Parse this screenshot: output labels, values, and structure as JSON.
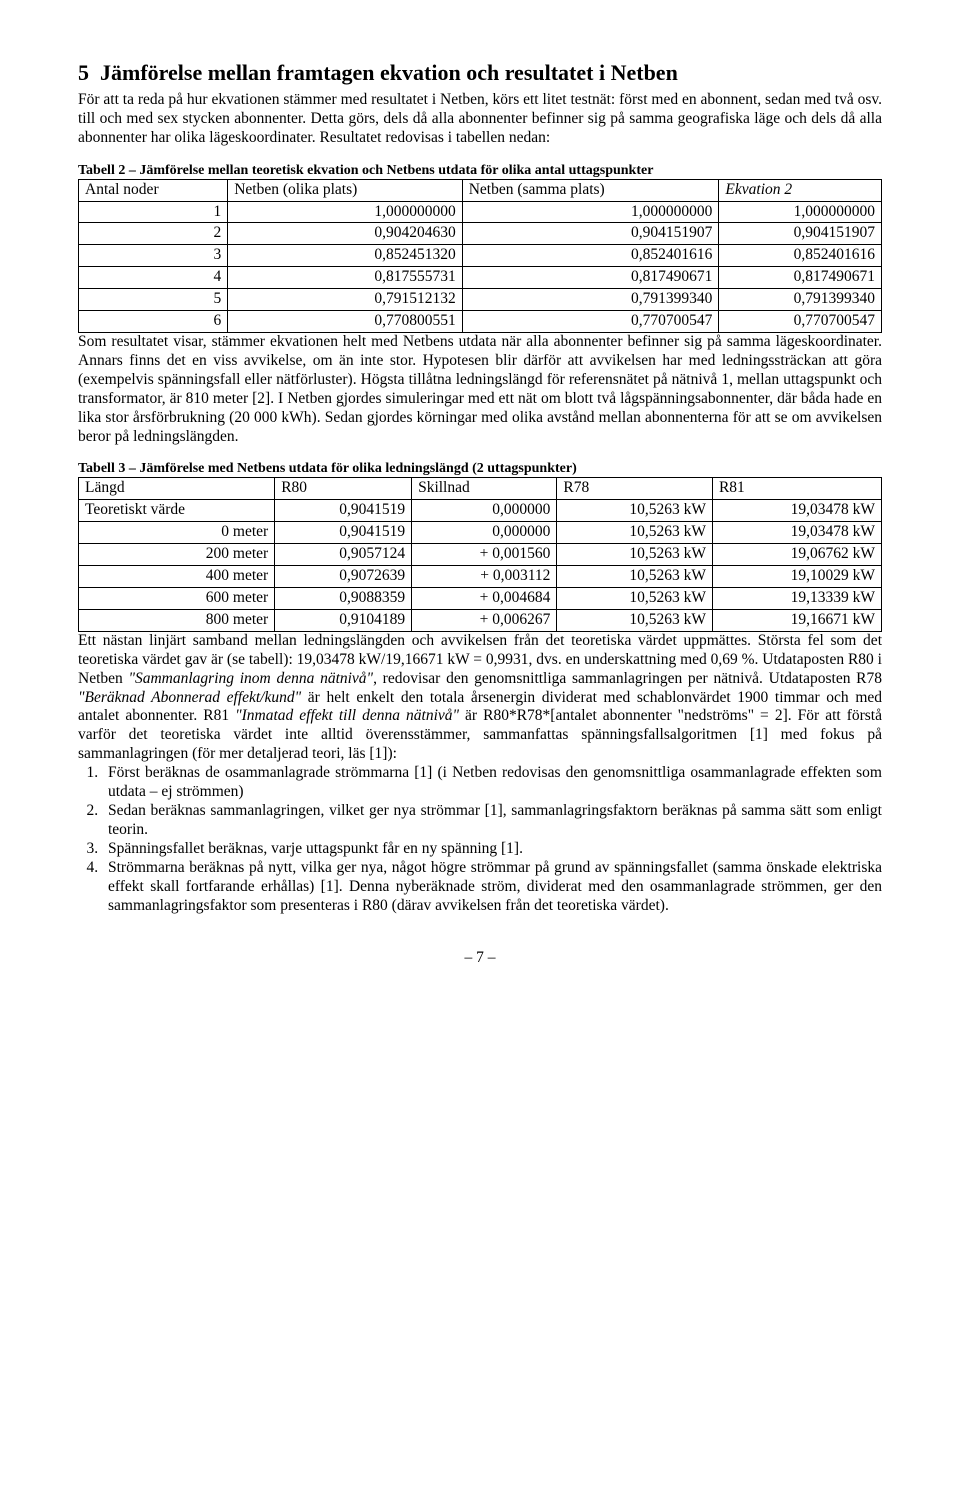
{
  "section": {
    "number": "5",
    "title": "Jämförelse mellan framtagen ekvation och resultatet i Netben"
  },
  "para1": "För att ta reda på hur ekvationen stämmer med resultatet i Netben, körs ett litet testnät: först med en abonnent, sedan med två osv. till och med sex stycken abonnenter. Detta görs, dels då alla abonnenter befinner sig på samma geografiska läge och dels då alla abonnenter har olika lägeskoordinater. Resultatet redovisas i tabellen nedan:",
  "table2": {
    "caption": "Tabell 2 – Jämförelse mellan teoretisk ekvation och Netbens utdata för olika antal uttagspunkter",
    "headers": [
      "Antal noder",
      "Netben (olika plats)",
      "Netben (samma plats)",
      "Ekvation 2"
    ],
    "rows": [
      [
        "1",
        "1,000000000",
        "1,000000000",
        "1,000000000"
      ],
      [
        "2",
        "0,904204630",
        "0,904151907",
        "0,904151907"
      ],
      [
        "3",
        "0,852451320",
        "0,852401616",
        "0,852401616"
      ],
      [
        "4",
        "0,817555731",
        "0,817490671",
        "0,817490671"
      ],
      [
        "5",
        "0,791512132",
        "0,791399340",
        "0,791399340"
      ],
      [
        "6",
        "0,770800551",
        "0,770700547",
        "0,770700547"
      ]
    ]
  },
  "para2": "Som resultatet visar, stämmer ekvationen helt med Netbens utdata när alla abonnenter befinner sig på samma lägeskoordinater. Annars finns det en viss avvikelse, om än inte stor. Hypotesen blir därför att avvikelsen har med ledningssträckan att göra (exempelvis spänningsfall eller nätförluster). Högsta tillåtna ledningslängd för referensnätet på nätnivå 1, mellan uttagspunkt och transformator, är 810 meter [2]. I Netben gjordes simuleringar med ett nät om blott två lågspänningsabonnenter, där båda hade en lika stor årsförbrukning (20 000 kWh). Sedan gjordes körningar med olika avstånd mellan abonnenterna för att se om avvikelsen beror på ledningslängden.",
  "table3": {
    "caption": "Tabell 3 – Jämförelse med Netbens utdata för olika ledningslängd (2 uttagspunkter)",
    "headers": [
      "Längd",
      "R80",
      "Skillnad",
      "R78",
      "R81"
    ],
    "rows": [
      [
        "Teoretiskt värde",
        "0,9041519",
        "0,000000",
        "10,5263 kW",
        "19,03478 kW"
      ],
      [
        "0 meter",
        "0,9041519",
        "0,000000",
        "10,5263 kW",
        "19,03478 kW"
      ],
      [
        "200 meter",
        "0,9057124",
        "+ 0,001560",
        "10,5263 kW",
        "19,06762 kW"
      ],
      [
        "400 meter",
        "0,9072639",
        "+ 0,003112",
        "10,5263 kW",
        "19,10029 kW"
      ],
      [
        "600 meter",
        "0,9088359",
        "+ 0,004684",
        "10,5263 kW",
        "19,13339 kW"
      ],
      [
        "800 meter",
        "0,9104189",
        "+ 0,006267",
        "10,5263 kW",
        "19,16671 kW"
      ]
    ]
  },
  "para3a": "Ett nästan linjärt samband mellan ledningslängden och avvikelsen från det teoretiska värdet uppmättes. Största fel som det teoretiska värdet gav är (se tabell): 19,03478 kW/19,16671 kW = 0,9931, dvs. en underskattning med 0,69 %. Utdataposten R80 i Netben ",
  "para3i1": "\"Sammanlagring inom denna nätnivå\"",
  "para3b": ", redovisar den genomsnittliga sammanlagringen per nätnivå. Utdataposten R78 ",
  "para3i2": "\"Beräknad Abonnerad effekt/kund\"",
  "para3c": " är helt enkelt den totala årsenergin dividerat med schablonvärdet 1900 timmar och med antalet abonnenter. R81 ",
  "para3i3": "\"Inmatad effekt till denna nätnivå\"",
  "para3d": " är R80*R78*[antalet abonnenter \"nedströms\" = 2]. För att förstå varför det teoretiska värdet inte alltid överensstämmer, sammanfattas spänningsfallsalgoritmen [1] med fokus på sammanlagringen (för mer detaljerad teori, läs [1]):",
  "list": [
    "Först beräknas de osammanlagrade strömmarna [1] (i Netben redovisas den genomsnittliga osammanlagrade effekten som utdata – ej strömmen)",
    "Sedan beräknas sammanlagringen, vilket ger nya strömmar [1], sammanlagringsfaktorn beräknas på samma sätt som enligt teorin.",
    "Spänningsfallet beräknas, varje uttagspunkt får en ny spänning [1].",
    "Strömmarna beräknas på nytt, vilka ger nya, något högre strömmar på grund av spänningsfallet (samma önskade elektriska effekt skall fortfarande erhållas) [1]. Denna nyberäknade ström, dividerat med den osammanlagrade strömmen, ger den sammanlagringsfaktor som presenteras i R80 (därav avvikelsen från det teoretiska värdet)."
  ],
  "pagefoot": "– 7 –"
}
